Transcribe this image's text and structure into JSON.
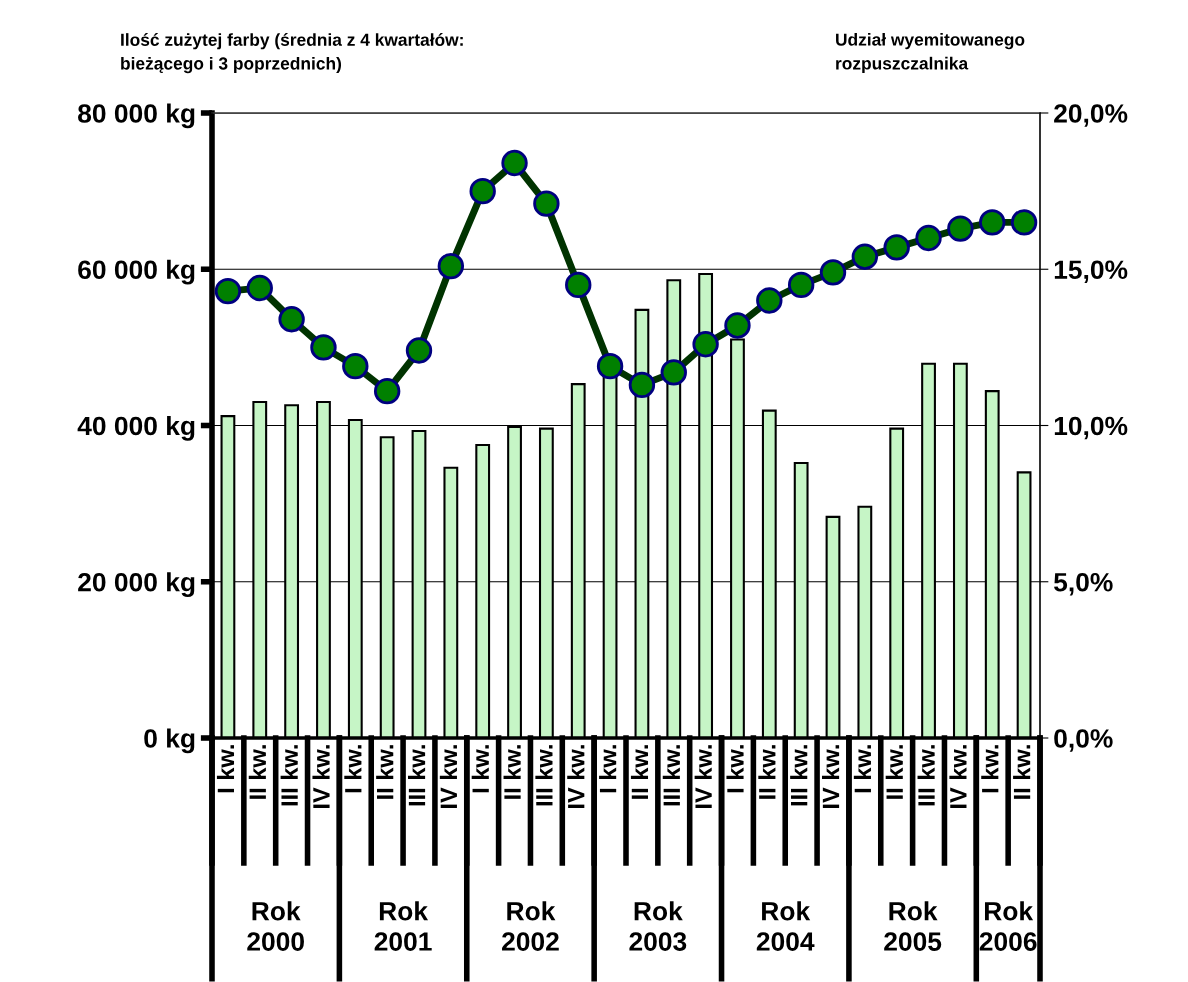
{
  "chart_data": {
    "type": "bar",
    "ylabel": "Ilość zużytej farby (średnia z 4 kwartałów:\nbieżącego i 3 poprzednich)",
    "y2label": "Udział wyemitowanego\nrozpuszczalnika",
    "categories": [
      "I kw.",
      "II kw.",
      "III kw.",
      "IV kw.",
      "I kw.",
      "II kw.",
      "III kw.",
      "IV kw.",
      "I kw.",
      "II kw.",
      "III kw.",
      "IV kw.",
      "I kw.",
      "II kw.",
      "III kw.",
      "IV kw.",
      "I kw.",
      "II kw.",
      "III kw.",
      "IV kw.",
      "I kw.",
      "II kw.",
      "III kw.",
      "IV kw.",
      "I kw.",
      "II kw."
    ],
    "series": [
      {
        "color": "#c6f5c6",
        "values": [
          41200,
          43000,
          42600,
          43000,
          40700,
          38500,
          39300,
          34600,
          37500,
          39800,
          39600,
          45300,
          46500,
          54800,
          58600,
          59400,
          51000,
          41900,
          35200,
          28300,
          29600,
          39600,
          47900,
          47900,
          44400,
          34000
        ]
      },
      {
        "type": "line",
        "axis": "y2",
        "color": "#008000",
        "marker": "circle",
        "values": [
          14.3,
          14.4,
          13.4,
          12.5,
          11.9,
          11.1,
          12.4,
          15.1,
          17.5,
          18.4,
          17.1,
          14.5,
          11.9,
          11.3,
          11.7,
          12.6,
          13.2,
          14.0,
          14.5,
          14.9,
          15.4,
          15.7,
          16.0,
          16.3,
          16.5,
          16.5
        ]
      }
    ],
    "ylim": [
      0,
      80000
    ],
    "yticks": [
      {
        "value": 0,
        "label": "0 kg"
      },
      {
        "value": 20000,
        "label": "20 000 kg"
      },
      {
        "value": 40000,
        "label": "40 000 kg"
      },
      {
        "value": 60000,
        "label": "60 000 kg"
      },
      {
        "value": 80000,
        "label": "80 000 kg"
      }
    ],
    "y2lim": [
      0,
      20
    ],
    "y2ticks": [
      {
        "value": 0,
        "label": "0,0%"
      },
      {
        "value": 5,
        "label": "5,0%"
      },
      {
        "value": 10,
        "label": "10,0%"
      },
      {
        "value": 15,
        "label": "15,0%"
      },
      {
        "value": 20,
        "label": "20,0%"
      }
    ],
    "grid": "y",
    "annotations": [
      "Rok\n2000",
      "Rok\n2001",
      "Rok\n2002",
      "Rok\n2003",
      "Rok\n2004",
      "Rok\n2005",
      "Rok\n2006"
    ]
  }
}
